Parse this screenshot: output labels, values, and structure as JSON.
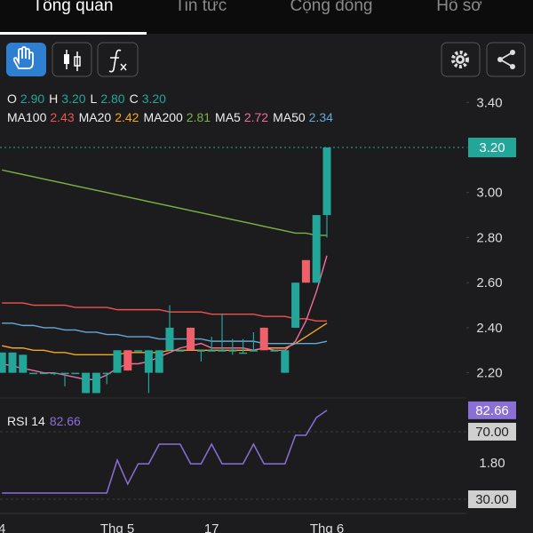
{
  "tabs": [
    "Tổng quan",
    "Tin tức",
    "Cộng đồng",
    "Hồ sơ"
  ],
  "chart_data": [
    {
      "type": "candlestick",
      "categories": [
        "4",
        null,
        null,
        null,
        null,
        null,
        null,
        null,
        null,
        null,
        null,
        "Thg 5",
        null,
        null,
        null,
        null,
        null,
        null,
        null,
        null,
        "17",
        null,
        null,
        null,
        null,
        null,
        null,
        null,
        null,
        null,
        null,
        "Thg 6"
      ],
      "open": [
        2.2,
        2.2,
        2.2,
        2.2,
        2.2,
        2.2,
        2.2,
        2.2,
        2.11,
        2.11,
        2.2,
        2.2,
        2.3,
        2.3,
        2.2,
        2.2,
        2.3,
        2.3,
        2.4,
        2.3,
        2.3,
        2.3,
        2.3,
        2.29,
        2.3,
        2.4,
        2.3,
        2.2,
        2.4,
        2.7,
        2.6,
        2.9
      ],
      "high": [
        2.29,
        2.29,
        2.28,
        2.2,
        2.2,
        2.2,
        2.2,
        2.2,
        2.2,
        2.2,
        2.2,
        2.3,
        2.3,
        2.3,
        2.3,
        2.3,
        2.5,
        2.3,
        2.4,
        2.3,
        2.36,
        2.46,
        2.35,
        2.35,
        2.38,
        2.4,
        2.3,
        2.3,
        2.6,
        2.7,
        2.9,
        3.2
      ],
      "low": [
        2.2,
        2.2,
        2.2,
        2.2,
        2.2,
        2.19,
        2.14,
        2.2,
        2.11,
        2.11,
        2.15,
        2.2,
        2.21,
        2.3,
        2.11,
        2.2,
        2.3,
        2.3,
        2.3,
        2.25,
        2.3,
        2.3,
        2.28,
        2.29,
        2.3,
        2.3,
        2.3,
        2.2,
        2.4,
        2.6,
        2.6,
        2.8
      ],
      "close": [
        2.29,
        2.29,
        2.28,
        2.2,
        2.2,
        2.2,
        2.2,
        2.2,
        2.2,
        2.2,
        2.2,
        2.3,
        2.21,
        2.3,
        2.3,
        2.3,
        2.4,
        2.3,
        2.3,
        2.3,
        2.3,
        2.3,
        2.3,
        2.29,
        2.3,
        2.3,
        2.3,
        2.3,
        2.6,
        2.6,
        2.9,
        3.2
      ],
      "up_color": "#22a699",
      "down_color": "#f0606a",
      "ohlc_legend": [
        {
          "key": "O",
          "text": "2.90"
        },
        {
          "key": "H",
          "text": "3.20"
        },
        {
          "key": "L",
          "text": "2.80"
        },
        {
          "key": "C",
          "text": "3.20"
        }
      ],
      "price_tag": "3.20",
      "series": [
        {
          "name": "MA100",
          "color": "#ef5350",
          "last_label": "2.43",
          "values": [
            2.51,
            2.51,
            2.51,
            2.5,
            2.5,
            2.5,
            2.5,
            2.49,
            2.49,
            2.49,
            2.49,
            2.48,
            2.48,
            2.48,
            2.48,
            2.48,
            2.47,
            2.47,
            2.47,
            2.47,
            2.46,
            2.46,
            2.46,
            2.46,
            2.46,
            2.45,
            2.45,
            2.45,
            2.44,
            2.44,
            2.43,
            2.43
          ]
        },
        {
          "name": "MA20",
          "color": "#f5a623",
          "last_label": "2.42",
          "values": [
            2.32,
            2.31,
            2.31,
            2.3,
            2.3,
            2.29,
            2.29,
            2.28,
            2.28,
            2.28,
            2.28,
            2.28,
            2.29,
            2.29,
            2.29,
            2.29,
            2.3,
            2.3,
            2.3,
            2.3,
            2.3,
            2.3,
            2.3,
            2.3,
            2.3,
            2.31,
            2.31,
            2.31,
            2.33,
            2.36,
            2.39,
            2.42
          ]
        },
        {
          "name": "MA200",
          "color": "#7cb342",
          "last_label": "2.81",
          "values": [
            3.1,
            3.09,
            3.08,
            3.07,
            3.06,
            3.05,
            3.04,
            3.03,
            3.02,
            3.01,
            3.0,
            2.99,
            2.98,
            2.97,
            2.96,
            2.95,
            2.94,
            2.93,
            2.92,
            2.91,
            2.9,
            2.89,
            2.88,
            2.87,
            2.86,
            2.85,
            2.84,
            2.83,
            2.82,
            2.82,
            2.81,
            2.81
          ]
        },
        {
          "name": "MA5",
          "color": "#ec6fa0",
          "last_label": "2.72",
          "values": [
            2.24,
            2.23,
            2.22,
            2.21,
            2.2,
            2.2,
            2.19,
            2.18,
            2.17,
            2.17,
            2.19,
            2.22,
            2.24,
            2.24,
            2.25,
            2.27,
            2.29,
            2.31,
            2.32,
            2.33,
            2.31,
            2.31,
            2.31,
            2.31,
            2.3,
            2.31,
            2.3,
            2.3,
            2.34,
            2.43,
            2.56,
            2.72
          ]
        },
        {
          "name": "MA50",
          "color": "#64a8d8",
          "last_label": "2.34",
          "values": [
            2.42,
            2.42,
            2.41,
            2.41,
            2.4,
            2.4,
            2.39,
            2.39,
            2.38,
            2.38,
            2.37,
            2.37,
            2.36,
            2.36,
            2.36,
            2.35,
            2.35,
            2.35,
            2.35,
            2.35,
            2.34,
            2.34,
            2.34,
            2.34,
            2.34,
            2.33,
            2.33,
            2.33,
            2.33,
            2.33,
            2.33,
            2.34
          ]
        }
      ],
      "ylim": [
        2.1,
        3.48
      ],
      "yticks": [
        {
          "value": 2.2,
          "label": "2.20"
        },
        {
          "value": 2.4,
          "label": "2.40"
        },
        {
          "value": 2.6,
          "label": "2.60"
        },
        {
          "value": 2.8,
          "label": "2.80"
        },
        {
          "value": 3.0,
          "label": "3.00"
        },
        {
          "value": 3.2,
          "label": "3.20"
        },
        {
          "value": 3.4,
          "label": "3.40"
        }
      ]
    },
    {
      "type": "line",
      "series": [
        {
          "name": "RSI 14",
          "color": "#8a6fd6",
          "last_label": "82.66",
          "values": [
            33.7,
            33.7,
            33.7,
            33.7,
            33.7,
            33.7,
            33.7,
            33.7,
            33.7,
            33.7,
            33.7,
            53.2,
            39,
            51,
            51,
            62.6,
            62.6,
            62.6,
            51,
            51,
            62.6,
            51,
            51,
            51,
            62.6,
            51,
            51,
            51,
            67.9,
            67.9,
            78.4,
            82.66
          ]
        }
      ],
      "ylim": [
        21.6,
        88.9
      ],
      "yticks": [
        {
          "value": 70,
          "label": "70.00"
        },
        {
          "value": 30,
          "label": "30.00"
        }
      ],
      "annotations": [
        "1.80"
      ]
    }
  ]
}
